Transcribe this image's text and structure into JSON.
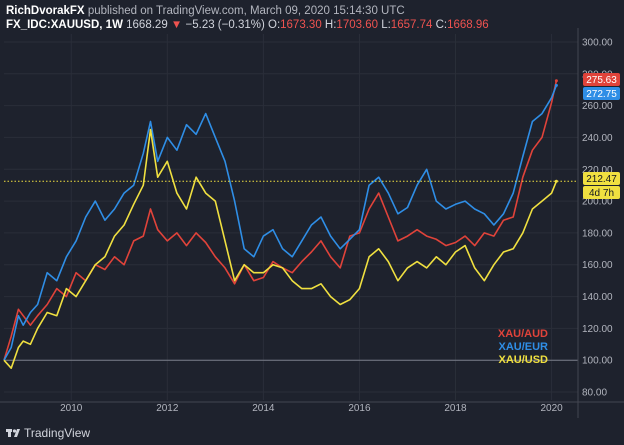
{
  "header": {
    "author": "RichDvorakFX",
    "published": "published on TradingView.com, March 09, 2020 15:14:30 UTC",
    "symbol": "FX_IDC:XAUUSD, 1W",
    "last": "1668.29",
    "change_arrow": "▼",
    "change": "−5.23 (−0.31%)",
    "o_label": "O:",
    "o_val": "1673.30",
    "h_label": "H:",
    "h_val": "1703.60",
    "l_label": "L:",
    "l_val": "1657.74",
    "c_label": "C:",
    "c_val": "1668.96"
  },
  "footer": {
    "brand": "TradingView"
  },
  "price_badges": {
    "aud": "275.63",
    "eur": "272.75",
    "usd": "212.47",
    "countdown": "4d 7h"
  },
  "colors": {
    "background": "#1e222d",
    "aud": "#e0433a",
    "eur": "#2f8ee6",
    "usd": "#f0e040",
    "grid": "#2a2e39",
    "baseline": "#7a7e8a",
    "crosshair": "#f0e040"
  },
  "chart_data": {
    "type": "line",
    "xlabel": "",
    "ylabel": "",
    "ylim": [
      75,
      305
    ],
    "xlim": [
      2008.6,
      2020.55
    ],
    "y_ticks": [
      "300.00",
      "280.00",
      "260.00",
      "240.00",
      "220.00",
      "200.00",
      "180.00",
      "160.00",
      "140.00",
      "120.00",
      "100.00",
      "80.00"
    ],
    "x_ticks": [
      "2010",
      "2012",
      "2014",
      "2016",
      "2018",
      "2020"
    ],
    "grid": true,
    "legend_position": "bottom-right",
    "series": [
      {
        "name": "XAU/AUD",
        "x": [
          2008.6,
          2008.75,
          2008.9,
          2009.0,
          2009.15,
          2009.3,
          2009.5,
          2009.7,
          2009.9,
          2010.1,
          2010.3,
          2010.5,
          2010.7,
          2010.9,
          2011.1,
          2011.3,
          2011.5,
          2011.65,
          2011.8,
          2012.0,
          2012.2,
          2012.4,
          2012.6,
          2012.8,
          2013.0,
          2013.2,
          2013.4,
          2013.6,
          2013.8,
          2014.0,
          2014.2,
          2014.4,
          2014.6,
          2014.8,
          2015.0,
          2015.2,
          2015.4,
          2015.6,
          2015.8,
          2016.0,
          2016.2,
          2016.4,
          2016.6,
          2016.8,
          2017.0,
          2017.2,
          2017.4,
          2017.6,
          2017.8,
          2018.0,
          2018.2,
          2018.4,
          2018.6,
          2018.8,
          2019.0,
          2019.2,
          2019.4,
          2019.6,
          2019.8,
          2020.0,
          2020.1
        ],
        "values": [
          100,
          115,
          132,
          128,
          122,
          128,
          135,
          145,
          140,
          155,
          150,
          160,
          157,
          165,
          160,
          175,
          178,
          195,
          182,
          175,
          180,
          172,
          180,
          174,
          165,
          158,
          148,
          160,
          150,
          152,
          162,
          158,
          155,
          162,
          168,
          175,
          165,
          158,
          178,
          180,
          195,
          205,
          190,
          175,
          178,
          182,
          178,
          176,
          172,
          174,
          178,
          172,
          180,
          178,
          188,
          190,
          215,
          232,
          240,
          262,
          275.63
        ]
      },
      {
        "name": "XAU/EUR",
        "x": [
          2008.6,
          2008.75,
          2008.9,
          2009.0,
          2009.15,
          2009.3,
          2009.5,
          2009.7,
          2009.9,
          2010.1,
          2010.3,
          2010.5,
          2010.7,
          2010.9,
          2011.1,
          2011.3,
          2011.5,
          2011.65,
          2011.8,
          2012.0,
          2012.2,
          2012.4,
          2012.6,
          2012.8,
          2013.0,
          2013.2,
          2013.4,
          2013.6,
          2013.8,
          2014.0,
          2014.2,
          2014.4,
          2014.6,
          2014.8,
          2015.0,
          2015.2,
          2015.4,
          2015.6,
          2015.8,
          2016.0,
          2016.2,
          2016.4,
          2016.6,
          2016.8,
          2017.0,
          2017.2,
          2017.4,
          2017.6,
          2017.8,
          2018.0,
          2018.2,
          2018.4,
          2018.6,
          2018.8,
          2019.0,
          2019.2,
          2019.4,
          2019.6,
          2019.8,
          2020.0,
          2020.1
        ],
        "values": [
          100,
          108,
          128,
          122,
          130,
          135,
          155,
          150,
          165,
          175,
          190,
          200,
          188,
          195,
          205,
          210,
          230,
          250,
          225,
          240,
          232,
          248,
          242,
          255,
          240,
          225,
          200,
          170,
          165,
          178,
          182,
          170,
          165,
          175,
          185,
          190,
          178,
          170,
          176,
          182,
          210,
          215,
          205,
          192,
          196,
          210,
          220,
          200,
          195,
          198,
          200,
          195,
          192,
          185,
          192,
          205,
          228,
          250,
          255,
          265,
          272.75
        ]
      },
      {
        "name": "XAU/USD",
        "x": [
          2008.6,
          2008.75,
          2008.9,
          2009.0,
          2009.15,
          2009.3,
          2009.5,
          2009.7,
          2009.9,
          2010.1,
          2010.3,
          2010.5,
          2010.7,
          2010.9,
          2011.1,
          2011.3,
          2011.5,
          2011.65,
          2011.8,
          2012.0,
          2012.2,
          2012.4,
          2012.6,
          2012.8,
          2013.0,
          2013.2,
          2013.4,
          2013.6,
          2013.8,
          2014.0,
          2014.2,
          2014.4,
          2014.6,
          2014.8,
          2015.0,
          2015.2,
          2015.4,
          2015.6,
          2015.8,
          2016.0,
          2016.2,
          2016.4,
          2016.6,
          2016.8,
          2017.0,
          2017.2,
          2017.4,
          2017.6,
          2017.8,
          2018.0,
          2018.2,
          2018.4,
          2018.6,
          2018.8,
          2019.0,
          2019.2,
          2019.4,
          2019.6,
          2019.8,
          2020.0,
          2020.1
        ],
        "values": [
          100,
          95,
          108,
          112,
          110,
          120,
          130,
          128,
          145,
          140,
          150,
          160,
          165,
          178,
          185,
          198,
          210,
          245,
          215,
          225,
          205,
          195,
          215,
          205,
          200,
          175,
          150,
          160,
          155,
          155,
          160,
          158,
          150,
          145,
          145,
          148,
          140,
          135,
          138,
          145,
          165,
          170,
          162,
          150,
          158,
          162,
          158,
          165,
          160,
          168,
          172,
          158,
          150,
          160,
          168,
          170,
          180,
          195,
          200,
          205,
          212.47
        ]
      }
    ]
  }
}
